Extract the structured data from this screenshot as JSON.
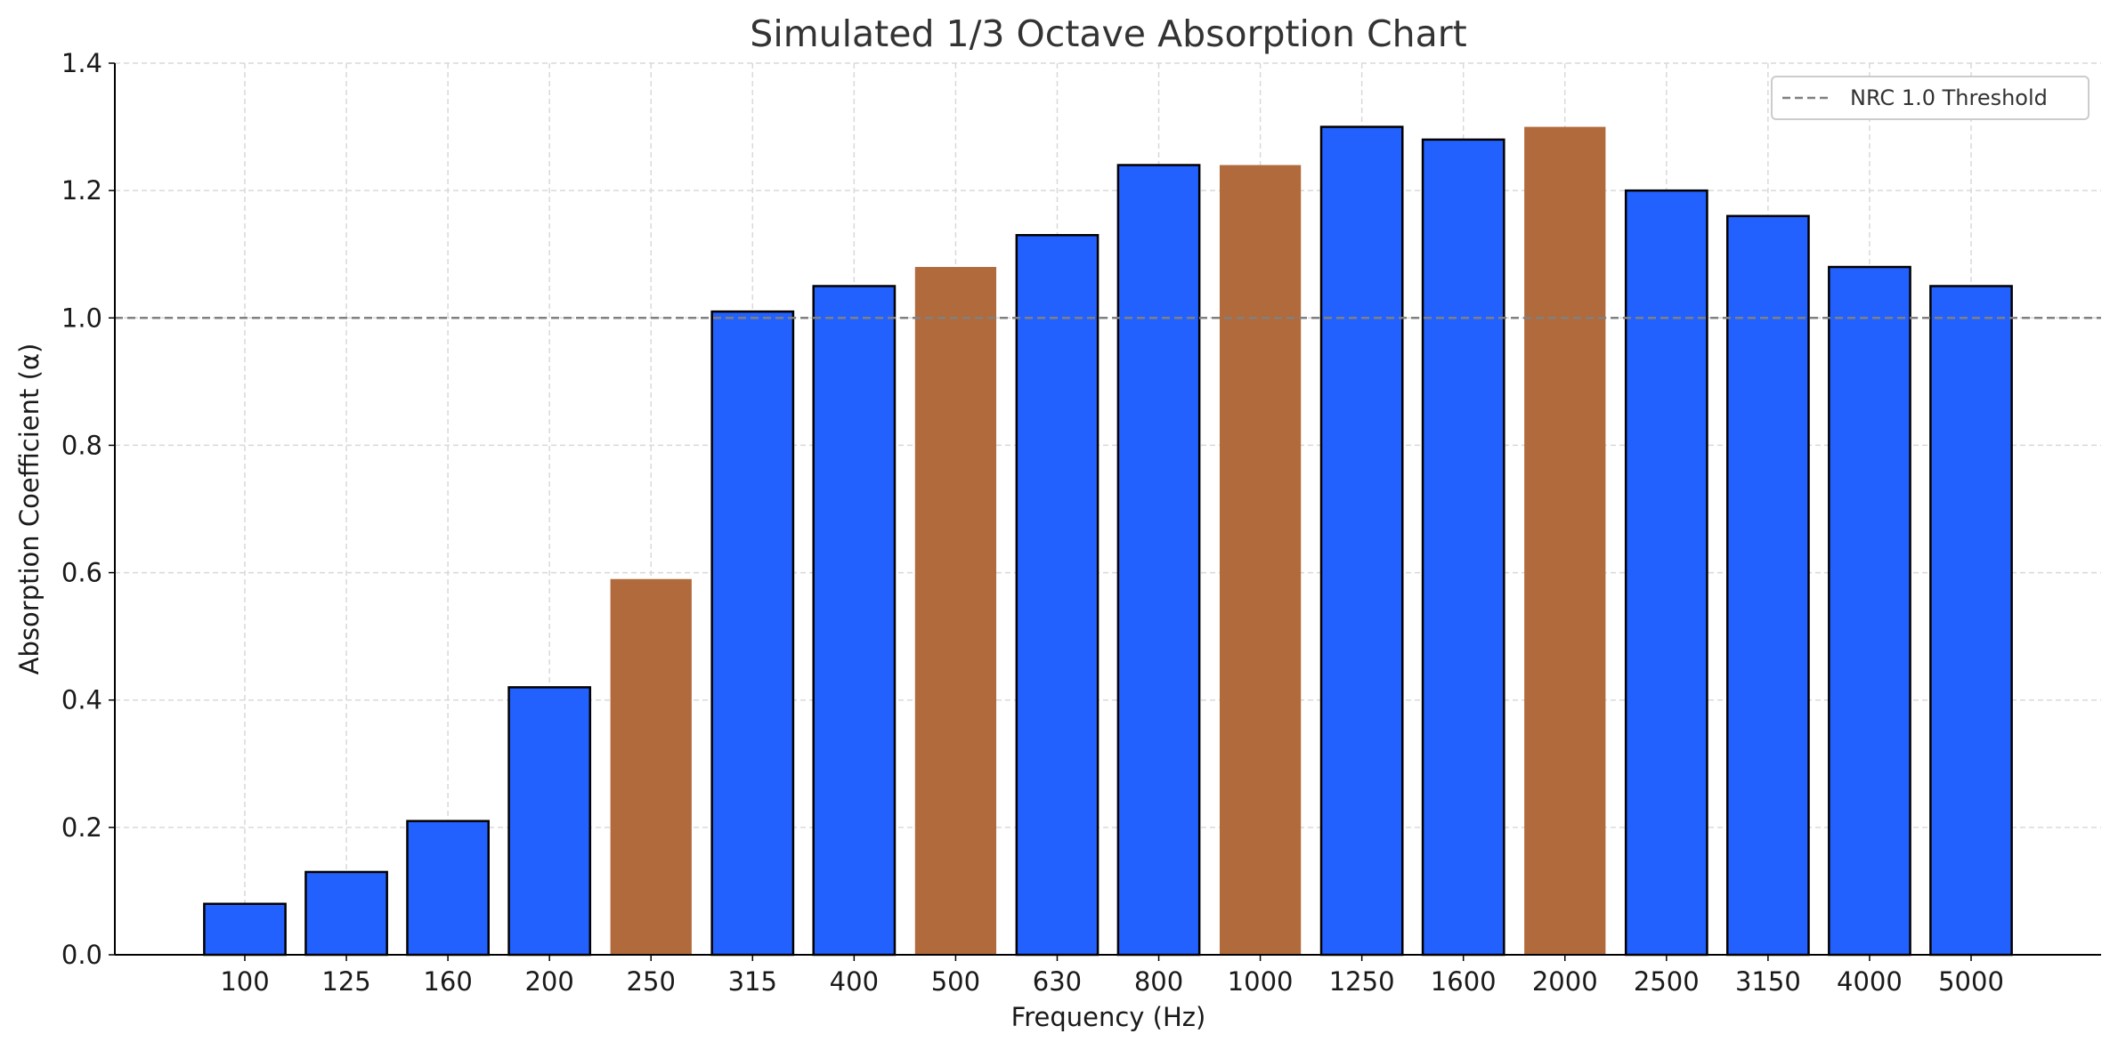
{
  "chart_data": {
    "type": "bar",
    "title": "Simulated 1/3 Octave Absorption Chart",
    "xlabel": "Frequency (Hz)",
    "ylabel": "Absorption Coefficient (α)",
    "categories": [
      "100",
      "125",
      "160",
      "200",
      "250",
      "315",
      "400",
      "500",
      "630",
      "800",
      "1000",
      "1250",
      "1600",
      "2000",
      "2500",
      "3150",
      "4000",
      "5000"
    ],
    "values": [
      0.08,
      0.13,
      0.21,
      0.42,
      0.59,
      1.01,
      1.05,
      1.08,
      1.13,
      1.24,
      1.24,
      1.3,
      1.28,
      1.3,
      1.2,
      1.16,
      1.08,
      1.05
    ],
    "highlighted": [
      "250",
      "500",
      "1000",
      "2000"
    ],
    "ylim": [
      0,
      1.4
    ],
    "yticks": [
      "0.0",
      "0.2",
      "0.4",
      "0.6",
      "0.8",
      "1.0",
      "1.2",
      "1.4"
    ],
    "grid": true,
    "threshold": {
      "value": 1.0,
      "label": "NRC 1.0 Threshold",
      "style": "dashed",
      "color": "#808080"
    },
    "legend": {
      "position": "top-right",
      "entries": [
        "NRC 1.0 Threshold"
      ]
    },
    "colors": {
      "bar": "#2361ff",
      "highlight": "#b06a3b",
      "edge": "#000000"
    }
  }
}
